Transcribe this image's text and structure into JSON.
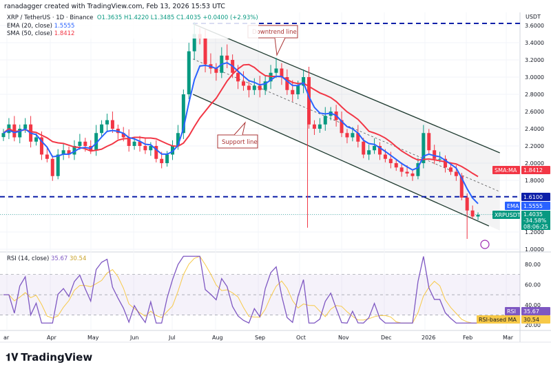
{
  "header": {
    "credit": "ranadagger created with TradingView.com, Feb 13, 2026 15:53 UTC",
    "symbol": "XRP / TetherUS · 1D · Binance",
    "open": "O1.3635",
    "high": "H1.4220",
    "low": "L1.3485",
    "close": "C1.4035",
    "change": "+0.0400 (+2.93%)",
    "ema_label": "EMA (20, close)",
    "ema_value": "1.5555",
    "sma_label": "SMA (50, close)",
    "sma_value": "1.8412"
  },
  "price_axis": {
    "unit": "USDT",
    "ticks": [
      "3.6000",
      "3.4000",
      "3.2000",
      "3.0000",
      "2.8000",
      "2.6000",
      "2.4000",
      "2.2000",
      "2.0000",
      "1.8000",
      "1.2000",
      "1.0000"
    ]
  },
  "tags": {
    "sma_name": "SMA:MA",
    "sma": "1.8412",
    "level": "1.6100",
    "ema_name": "EMA",
    "ema": "1.5555",
    "sym": "XRPUSDT",
    "last": "1.4035",
    "pct": "-34.58%",
    "countdown": "08:06:25"
  },
  "annotations": {
    "downtrend": "Downtrend line",
    "support": "Support line"
  },
  "rsi": {
    "label": "RSI (14, close)",
    "value": "35.67",
    "ma_value": "30.54",
    "tag_rsi": "RSI",
    "tag_ma": "RSI-based MA",
    "ticks": [
      "80.00",
      "60.00",
      "40.00",
      "20.00"
    ]
  },
  "x_axis": [
    "ar",
    "Apr",
    "May",
    "Jun",
    "Jul",
    "Aug",
    "Sep",
    "Oct",
    "Nov",
    "Dec",
    "2026",
    "Feb",
    "Mar"
  ],
  "brand": "TradingView",
  "colors": {
    "up": "#089981",
    "down": "#f23645",
    "ema": "#2962ff",
    "sma": "#f23645",
    "level": "#0d1fa8",
    "rsi": "#7e57c2",
    "rsi_ma": "#f7c948"
  },
  "chart_data": {
    "type": "candlestick",
    "start": "2025-03-01",
    "step_days": 4,
    "closes": [
      2.35,
      2.45,
      2.3,
      2.4,
      2.45,
      2.25,
      2.3,
      2.1,
      2.05,
      1.85,
      2.1,
      2.15,
      2.1,
      2.2,
      2.25,
      2.2,
      2.15,
      2.35,
      2.45,
      2.5,
      2.4,
      2.35,
      2.3,
      2.2,
      2.25,
      2.2,
      2.15,
      2.2,
      2.05,
      2.0,
      2.1,
      2.2,
      2.35,
      2.8,
      3.3,
      3.5,
      3.45,
      3.15,
      3.1,
      3.05,
      3.25,
      3.2,
      3.05,
      2.95,
      2.9,
      2.85,
      2.9,
      2.85,
      2.95,
      3.05,
      3.1,
      3.0,
      2.85,
      2.8,
      2.9,
      3.0,
      2.45,
      2.4,
      2.45,
      2.55,
      2.6,
      2.5,
      2.35,
      2.3,
      2.35,
      2.25,
      2.1,
      2.15,
      2.2,
      2.1,
      2.05,
      2.0,
      1.95,
      1.9,
      1.88,
      1.85,
      2.0,
      2.35,
      2.15,
      2.05,
      2.05,
      1.95,
      1.9,
      1.85,
      1.6,
      1.45,
      1.38,
      1.4
    ],
    "horizontal_levels": [
      3.6,
      1.61
    ],
    "channel": {
      "upper": [
        [
          "2025-07-18",
          3.62
        ],
        [
          "2026-02-28",
          2.12
        ]
      ],
      "lower": [
        [
          "2025-07-18",
          2.8
        ],
        [
          "2026-02-20",
          1.27
        ]
      ]
    },
    "ylim": [
      1.0,
      3.7
    ],
    "rsi_bands": [
      70,
      50,
      30
    ]
  }
}
